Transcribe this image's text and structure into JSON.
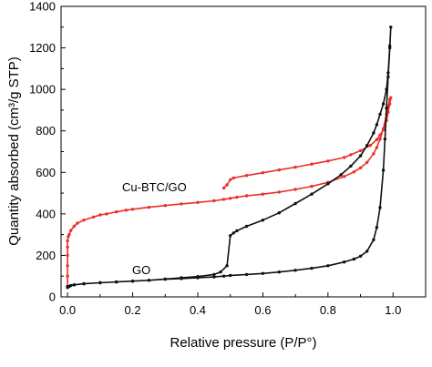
{
  "chart_data": {
    "type": "line",
    "title": "",
    "xlabel": "Relative pressure (P/P°)",
    "ylabel": "Quantity absorbed (cm³/g STP)",
    "xlim": [
      -0.02,
      1.1
    ],
    "ylim": [
      0,
      1400
    ],
    "xticks": [
      "0.0",
      "0.2",
      "0.4",
      "0.6",
      "0.8",
      "1.0"
    ],
    "xtick_values": [
      0.0,
      0.2,
      0.4,
      0.6,
      0.8,
      1.0
    ],
    "yticks": [
      "0",
      "200",
      "400",
      "600",
      "800",
      "1000",
      "1200",
      "1400"
    ],
    "ytick_values": [
      0,
      200,
      400,
      600,
      800,
      1000,
      1200,
      1400
    ],
    "grid": false,
    "legend": "none",
    "annotations": [
      {
        "text": "Cu-BTC/GO",
        "series": "Cu-BTC/GO"
      },
      {
        "text": "GO",
        "series": "GO"
      }
    ],
    "series": [
      {
        "name": "Cu-BTC/GO",
        "color": "#e8302a",
        "x": [
          0.0,
          0.0,
          0.0,
          0.0,
          0.0,
          0.0,
          0.002,
          0.005,
          0.01,
          0.02,
          0.03,
          0.05,
          0.08,
          0.1,
          0.12,
          0.15,
          0.18,
          0.2,
          0.25,
          0.3,
          0.35,
          0.4,
          0.45,
          0.48,
          0.5,
          0.52,
          0.55,
          0.6,
          0.65,
          0.7,
          0.75,
          0.8,
          0.85,
          0.88,
          0.9,
          0.92,
          0.94,
          0.95,
          0.96,
          0.97,
          0.98,
          0.985,
          0.99,
          0.993,
          0.99,
          0.985,
          0.98,
          0.97,
          0.96,
          0.95,
          0.93,
          0.9,
          0.87,
          0.85,
          0.8,
          0.75,
          0.7,
          0.65,
          0.6,
          0.55,
          0.51,
          0.5,
          0.49,
          0.48
        ],
        "y": [
          50,
          100,
          150,
          200,
          240,
          270,
          290,
          300,
          320,
          340,
          355,
          370,
          385,
          395,
          400,
          410,
          418,
          422,
          432,
          440,
          448,
          455,
          463,
          470,
          475,
          480,
          487,
          495,
          505,
          518,
          533,
          552,
          580,
          602,
          622,
          648,
          690,
          720,
          760,
          810,
          880,
          920,
          950,
          960,
          930,
          890,
          850,
          805,
          780,
          758,
          730,
          705,
          685,
          672,
          655,
          640,
          625,
          612,
          598,
          585,
          573,
          565,
          540,
          525
        ]
      },
      {
        "name": "GO",
        "color": "#111111",
        "x": [
          0.0,
          0.005,
          0.01,
          0.02,
          0.05,
          0.1,
          0.15,
          0.2,
          0.25,
          0.3,
          0.35,
          0.4,
          0.45,
          0.48,
          0.5,
          0.55,
          0.6,
          0.65,
          0.7,
          0.75,
          0.8,
          0.85,
          0.88,
          0.9,
          0.92,
          0.94,
          0.95,
          0.96,
          0.97,
          0.975,
          0.98,
          0.985,
          0.99,
          0.993,
          0.99,
          0.985,
          0.98,
          0.97,
          0.96,
          0.95,
          0.94,
          0.92,
          0.9,
          0.87,
          0.84,
          0.8,
          0.75,
          0.7,
          0.65,
          0.6,
          0.55,
          0.52,
          0.51,
          0.5,
          0.49,
          0.47,
          0.45,
          0.4,
          0.35,
          0.3,
          0.25,
          0.2,
          0.15,
          0.1,
          0.05,
          0.02,
          0.0
        ],
        "y": [
          45,
          50,
          55,
          58,
          63,
          68,
          72,
          76,
          80,
          85,
          88,
          92,
          96,
          100,
          103,
          108,
          113,
          120,
          128,
          138,
          150,
          168,
          182,
          196,
          220,
          275,
          335,
          430,
          610,
          760,
          910,
          1060,
          1200,
          1300,
          1210,
          1080,
          1000,
          930,
          880,
          830,
          790,
          730,
          680,
          630,
          588,
          545,
          495,
          450,
          405,
          370,
          340,
          318,
          308,
          295,
          150,
          120,
          108,
          98,
          92,
          86,
          80,
          76,
          72,
          68,
          63,
          58,
          50
        ]
      }
    ]
  }
}
